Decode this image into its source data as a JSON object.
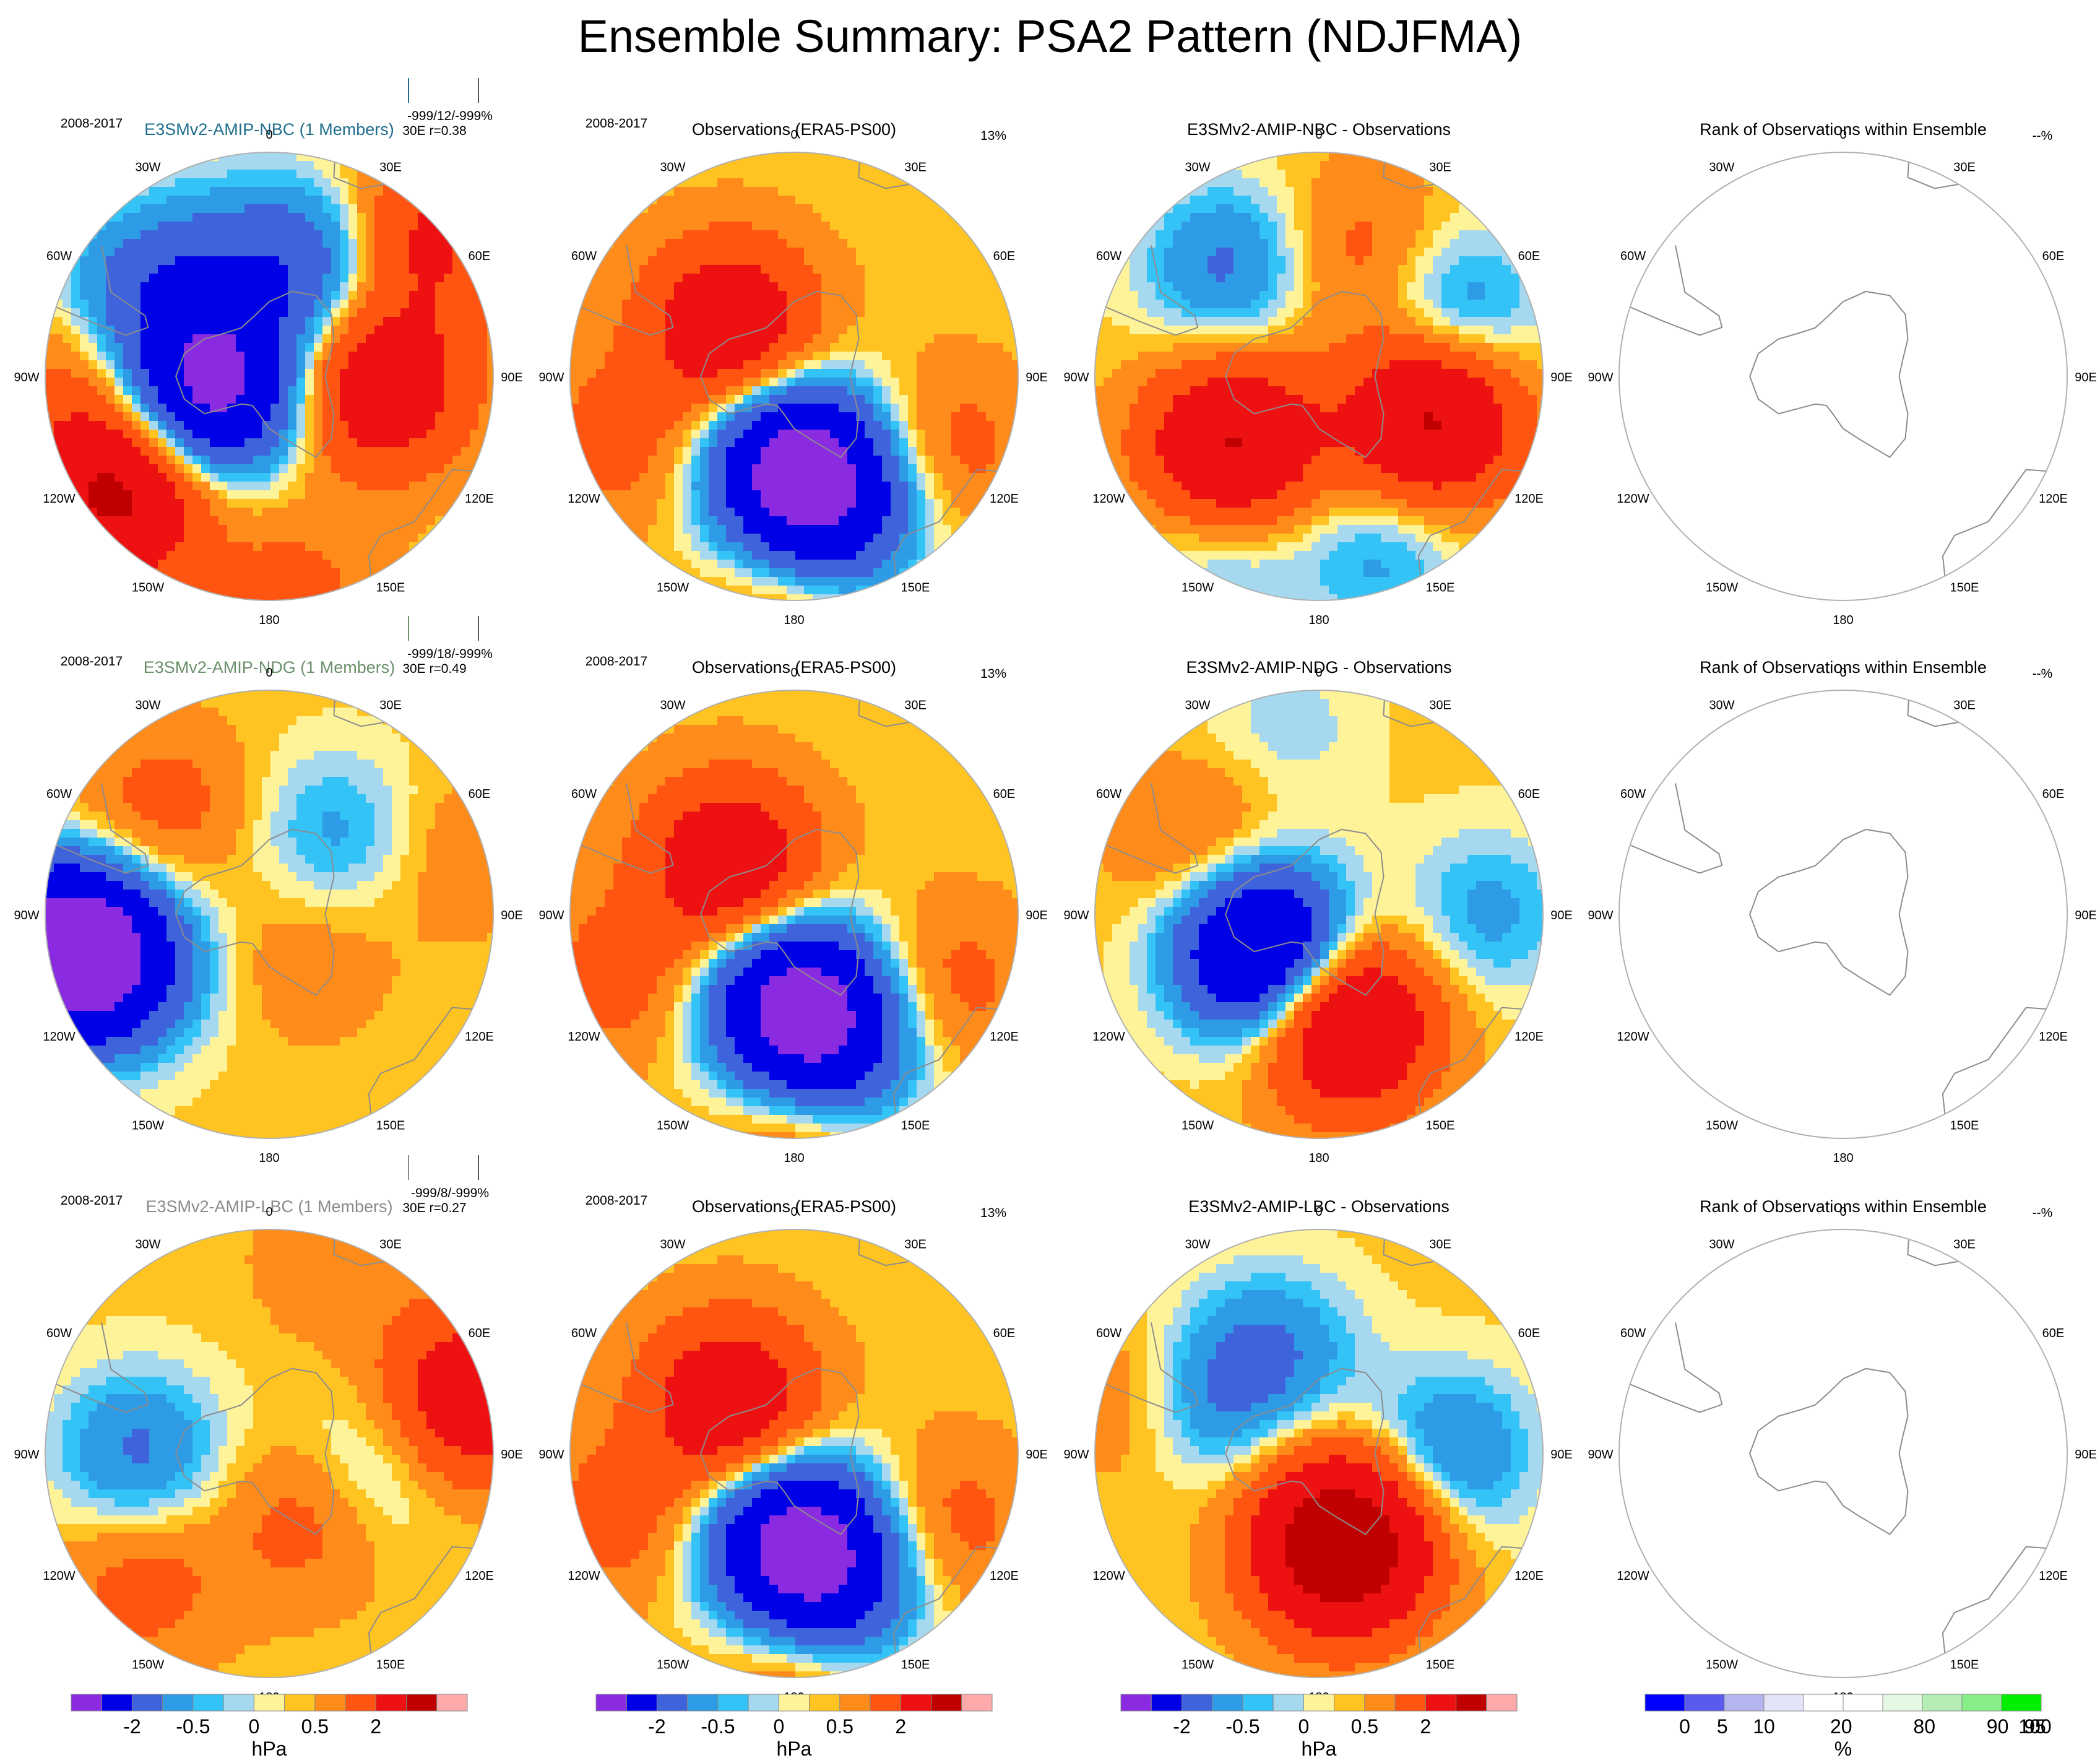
{
  "title": "Ensemble Summary: PSA2 Pattern (NDJFMA)",
  "colors": {
    "nbc_title": "#1f6e8c",
    "ndg_title": "#6a8f6a",
    "lbc_title": "#8a8a8a",
    "map_outline": "#b0b0b0",
    "coast": "#8c8c8c"
  },
  "scale_hpa": [
    {
      "level": "< -4",
      "color": "#8a2be2"
    },
    {
      "level": "-4 to -2",
      "color": "#0000e6"
    },
    {
      "level": "-2 to -1",
      "color": "#3f63db"
    },
    {
      "level": "-1 to -0.5",
      "color": "#2e9be6"
    },
    {
      "level": "-0.5 to -0.25",
      "color": "#33c3f7"
    },
    {
      "level": "-0.25 to 0",
      "color": "#a6d8ef"
    },
    {
      "level": "0 to 0.25",
      "color": "#fff39a"
    },
    {
      "level": "0.25 to 0.5",
      "color": "#ffc422"
    },
    {
      "level": "0.5 to 1",
      "color": "#ff8b1a"
    },
    {
      "level": "1 to 2",
      "color": "#ff5511"
    },
    {
      "level": "2 to 4",
      "color": "#ee1111"
    },
    {
      "level": "4 to 8",
      "color": "#c00000"
    },
    {
      "level": "> 8",
      "color": "#ffaaaa"
    }
  ],
  "scale_rank": [
    {
      "level": "0-5",
      "color": "#0000ff"
    },
    {
      "level": "5-10",
      "color": "#5a5aee"
    },
    {
      "level": "10-20",
      "color": "#b4b4ee"
    },
    {
      "level": "20-40",
      "color": "#e4e4f8"
    },
    {
      "level": "40-60",
      "color": "#ffffff"
    },
    {
      "level": "60-80",
      "color": "#ffffff"
    },
    {
      "level": "80-90",
      "color": "#e4f8e4"
    },
    {
      "level": "90-95",
      "color": "#b4ee b4"
    },
    {
      "level": "95-100",
      "color": "#88ee88"
    },
    {
      "level": "100",
      "color": "#00ee00"
    }
  ],
  "colorbars": [
    {
      "ticks": [
        "-2",
        "-0.5",
        "0",
        "0.5",
        "2"
      ],
      "unit": "hPa"
    },
    {
      "ticks": [
        "-2",
        "-0.5",
        "0",
        "0.5",
        "2"
      ],
      "unit": "hPa"
    },
    {
      "ticks": [
        "-2",
        "-0.5",
        "0",
        "0.5",
        "2"
      ],
      "unit": "hPa"
    },
    {
      "ticks": [
        "0",
        "5",
        "10",
        "20",
        "80",
        "90",
        "95",
        "100"
      ],
      "unit": "%"
    }
  ],
  "lon_labels": [
    "0",
    "30E",
    "60E",
    "90E",
    "120E",
    "150E",
    "180",
    "150W",
    "120W",
    "90W",
    "60W",
    "30W"
  ],
  "chart_data": [
    {
      "type": "heatmap",
      "row": 1,
      "title": "E3SMv2-AMIP-NBC (1 Members)",
      "period": "2008-2017",
      "stats_line1": "-999/12/-999%",
      "stats_line2": "30E r=0.38",
      "unit": "hPa",
      "pattern": [
        {
          "lat": -75,
          "lon": -100,
          "value": -5
        },
        {
          "lat": -58,
          "lon": 20,
          "value": -2
        },
        {
          "lat": -60,
          "lon": 95,
          "value": 3
        },
        {
          "lat": -38,
          "lon": -128,
          "value": 4
        },
        {
          "lat": -55,
          "lon": -28,
          "value": -1
        },
        {
          "lat": -48,
          "lon": -60,
          "value": -1.5
        },
        {
          "lat": -35,
          "lon": 48,
          "value": 2
        },
        {
          "lat": -40,
          "lon": -90,
          "value": 1
        },
        {
          "lat": -30,
          "lon": 175,
          "value": 1
        }
      ]
    },
    {
      "type": "heatmap",
      "row": 1,
      "title": "Observations (ERA5-PS00)",
      "period": "2008-2017",
      "stats_line1": "13%",
      "unit": "hPa",
      "pattern": [
        {
          "lat": -66,
          "lon": 180,
          "value": -5
        },
        {
          "lat": -52,
          "lon": 160,
          "value": -2
        },
        {
          "lat": -68,
          "lon": -52,
          "value": 3
        },
        {
          "lat": -45,
          "lon": 115,
          "value": 1
        },
        {
          "lat": -40,
          "lon": -110,
          "value": 1
        },
        {
          "lat": -30,
          "lon": 180,
          "value": 1
        },
        {
          "lat": -42,
          "lon": 170,
          "value": -0.5
        }
      ]
    },
    {
      "type": "heatmap",
      "row": 1,
      "title": "E3SMv2-AMIP-NBC - Observations",
      "unit": "hPa",
      "pattern": [
        {
          "lat": -60,
          "lon": -130,
          "value": 4
        },
        {
          "lat": -58,
          "lon": 110,
          "value": 4
        },
        {
          "lat": -52,
          "lon": -40,
          "value": -1.5
        },
        {
          "lat": -50,
          "lon": 65,
          "value": -1.5
        },
        {
          "lat": -40,
          "lon": 160,
          "value": -1
        },
        {
          "lat": -40,
          "lon": -150,
          "value": -1
        },
        {
          "lat": -55,
          "lon": 20,
          "value": 1
        }
      ]
    },
    {
      "type": "heatmap",
      "row": 1,
      "title": "Rank of Observations within Ensemble",
      "stats_line1": "--%",
      "unit": "%",
      "pattern": []
    },
    {
      "type": "heatmap",
      "row": 2,
      "title": "E3SMv2-AMIP-NDG (1 Members)",
      "period": "2008-2017",
      "stats_line1": "-999/18/-999%",
      "stats_line2": "30E r=0.49",
      "unit": "hPa",
      "pattern": [
        {
          "lat": -35,
          "lon": -100,
          "value": -6
        },
        {
          "lat": -48,
          "lon": -110,
          "value": -2
        },
        {
          "lat": -62,
          "lon": 40,
          "value": -1
        },
        {
          "lat": -50,
          "lon": -45,
          "value": 1
        },
        {
          "lat": -38,
          "lon": 72,
          "value": 0.5
        },
        {
          "lat": -75,
          "lon": 140,
          "value": 0.5
        }
      ]
    },
    {
      "type": "heatmap",
      "row": 2,
      "title": "Observations (ERA5-PS00)",
      "period": "2008-2017",
      "stats_line1": "13%",
      "unit": "hPa",
      "pattern": [
        {
          "lat": -66,
          "lon": 180,
          "value": -5
        },
        {
          "lat": -52,
          "lon": 160,
          "value": -2
        },
        {
          "lat": -68,
          "lon": -52,
          "value": 3
        },
        {
          "lat": -45,
          "lon": 115,
          "value": 1
        },
        {
          "lat": -40,
          "lon": -110,
          "value": 1
        },
        {
          "lat": -30,
          "lon": 180,
          "value": 1
        }
      ]
    },
    {
      "type": "heatmap",
      "row": 2,
      "title": "E3SMv2-AMIP-NDG - Observations",
      "unit": "hPa",
      "pattern": [
        {
          "lat": -72,
          "lon": -120,
          "value": -5
        },
        {
          "lat": -60,
          "lon": 165,
          "value": 4
        },
        {
          "lat": -55,
          "lon": -60,
          "value": 1
        },
        {
          "lat": -40,
          "lon": -10,
          "value": -0.5
        },
        {
          "lat": -45,
          "lon": 90,
          "value": -1
        }
      ]
    },
    {
      "type": "heatmap",
      "row": 2,
      "title": "Rank of Observations within Ensemble",
      "stats_line1": "--%",
      "unit": "%",
      "pattern": []
    },
    {
      "type": "heatmap",
      "row": 3,
      "title": "E3SMv2-AMIP-LBC (1 Members)",
      "period": "2008-2017",
      "stats_line1": "-999/8/-999%",
      "stats_line2": "30E r=0.27",
      "unit": "hPa",
      "pattern": [
        {
          "lat": -55,
          "lon": -90,
          "value": -1.5
        },
        {
          "lat": -60,
          "lon": 95,
          "value": -1
        },
        {
          "lat": -35,
          "lon": 75,
          "value": 3
        },
        {
          "lat": -70,
          "lon": 150,
          "value": 1
        },
        {
          "lat": -42,
          "lon": -135,
          "value": 1
        },
        {
          "lat": -35,
          "lon": 20,
          "value": 0.5
        }
      ]
    },
    {
      "type": "heatmap",
      "row": 3,
      "title": "Observations (ERA5-PS00)",
      "period": "2008-2017",
      "stats_line1": "13%",
      "unit": "hPa",
      "pattern": [
        {
          "lat": -66,
          "lon": 180,
          "value": -5
        },
        {
          "lat": -52,
          "lon": 160,
          "value": -2
        },
        {
          "lat": -68,
          "lon": -52,
          "value": 3
        },
        {
          "lat": -45,
          "lon": 115,
          "value": 1
        },
        {
          "lat": -40,
          "lon": -110,
          "value": 1
        },
        {
          "lat": -30,
          "lon": 180,
          "value": 1
        }
      ]
    },
    {
      "type": "heatmap",
      "row": 3,
      "title": "E3SMv2-AMIP-LBC - Observations",
      "unit": "hPa",
      "pattern": [
        {
          "lat": -65,
          "lon": 165,
          "value": 6
        },
        {
          "lat": -55,
          "lon": -65,
          "value": -1.5
        },
        {
          "lat": -55,
          "lon": 90,
          "value": -1.5
        },
        {
          "lat": -60,
          "lon": -22,
          "value": -1.2
        },
        {
          "lat": -42,
          "lon": -72,
          "value": 1
        }
      ]
    },
    {
      "type": "heatmap",
      "row": 3,
      "title": "Rank of Observations within Ensemble",
      "stats_line1": "--%",
      "unit": "%",
      "pattern": []
    }
  ]
}
